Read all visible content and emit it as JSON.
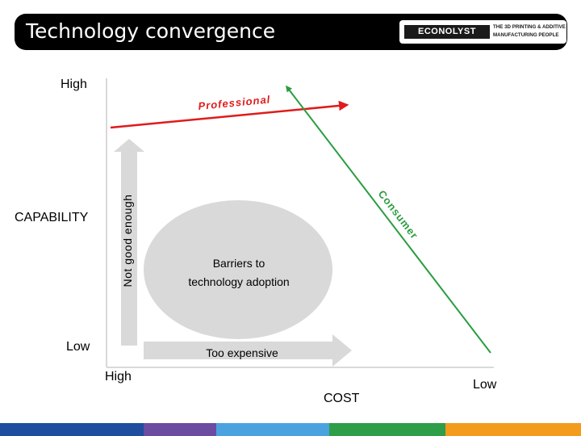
{
  "slide": {
    "title": "Technology convergence",
    "logo": {
      "name": "ECONOLYST",
      "tagline_line1": "THE 3D PRINTING & ADDITIVE",
      "tagline_line2": "MANUFACTURING PEOPLE"
    }
  },
  "diagram": {
    "y_axis": {
      "label": "CAPABILITY",
      "high": "High",
      "low": "Low"
    },
    "x_axis": {
      "label": "COST",
      "high": "High",
      "low": "Low"
    },
    "vertical_arrow_label": "Not good enough",
    "horizontal_arrow_label": "Too expensive",
    "barrier_line1": "Barriers to",
    "barrier_line2": "technology adoption",
    "professional_label": "Professional",
    "consumer_label": "Consumer"
  },
  "colors": {
    "professional": "#e01b1b",
    "consumer": "#2a9d3f",
    "ellipse": "#d9d9d9",
    "arrow": "#d9d9d9",
    "axis": "#d9d9d9",
    "stripes": [
      "#1f4e9e",
      "#6b4ca0",
      "#4aa3df",
      "#2e9e48",
      "#f29b1d"
    ]
  }
}
